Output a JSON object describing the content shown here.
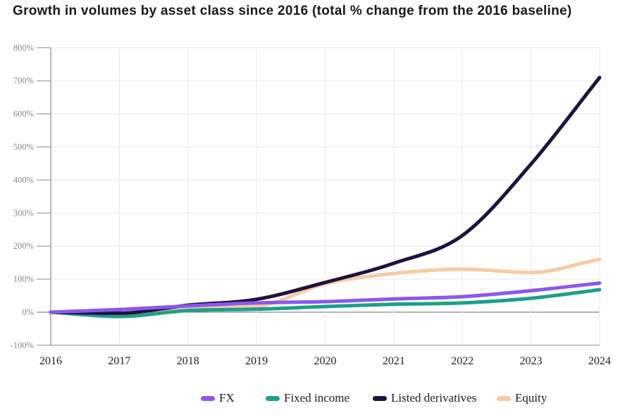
{
  "chart_data": {
    "type": "line",
    "title": "Growth in volumes by asset class since 2016 (total % change from the 2016 baseline)",
    "x_labels": [
      "2016",
      "2017",
      "2018",
      "2019",
      "2020",
      "2021",
      "2022",
      "2023",
      "2024"
    ],
    "ylim": [
      -100,
      800
    ],
    "ytick_step": 100,
    "ytick_labels": [
      "800%",
      "700%",
      "600%",
      "500%",
      "400%",
      "300%",
      "200%",
      "100%",
      "0%",
      "-100%"
    ],
    "grid": true,
    "legend_position": "bottom",
    "series": [
      {
        "name": "FX",
        "color": "#8b57ee",
        "values": [
          0,
          8,
          19,
          28,
          32,
          40,
          47,
          65,
          88
        ]
      },
      {
        "name": "Fixed income",
        "color": "#1ca08a",
        "values": [
          0,
          -13,
          5,
          9,
          17,
          24,
          28,
          42,
          68
        ]
      },
      {
        "name": "Listed derivatives",
        "color": "#1e1240",
        "values": [
          0,
          -3,
          21,
          39,
          90,
          148,
          232,
          448,
          710
        ]
      },
      {
        "name": "Equity",
        "color": "#f9c9a3",
        "values": [
          0,
          1,
          12,
          18,
          86,
          117,
          130,
          120,
          160
        ]
      }
    ]
  },
  "palette": {
    "axis": "#8a8a90",
    "grid": "#e9e9ee",
    "zero_line": "#6b6b70",
    "bottom_line": "#8a8a90",
    "y_tick_label": "#8a8a8f",
    "x_tick_label": "#1f1f22",
    "title": "#1a1a1a"
  }
}
